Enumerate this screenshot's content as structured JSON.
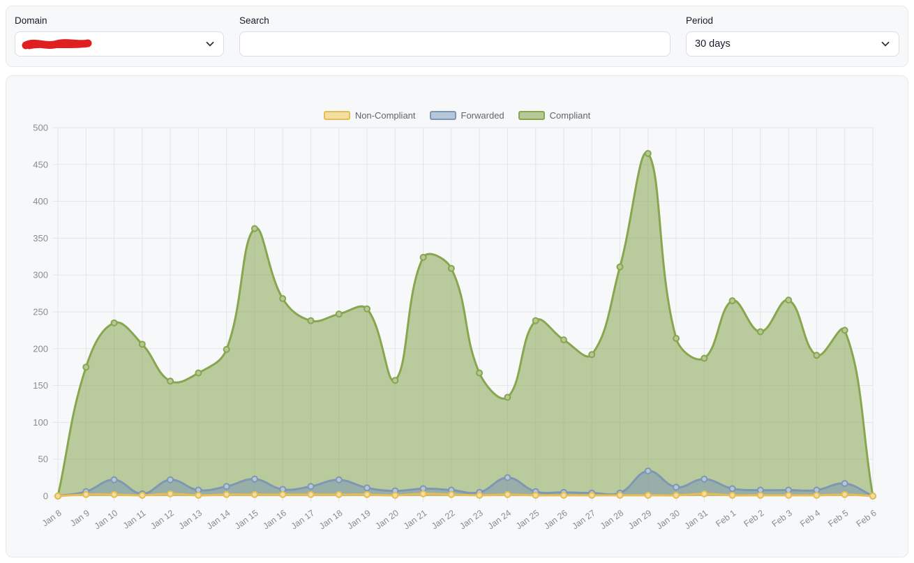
{
  "filters": {
    "domain": {
      "label": "Domain",
      "value": "",
      "redacted": true
    },
    "search": {
      "label": "Search",
      "value": "",
      "placeholder": ""
    },
    "period": {
      "label": "Period",
      "value": "30 days"
    }
  },
  "appearance": {
    "panel_bg": "#f7f8fa",
    "panel_border": "#e7e9ed",
    "grid_color": "#e3e5e8",
    "tick_text_color": "#878b91",
    "legend_text_color": "#5d6470",
    "redaction_color": "#e02020",
    "fill_opacity": 0.55
  },
  "chart_data": {
    "type": "area",
    "title": "",
    "xlabel": "",
    "ylabel": "",
    "ylim": [
      0,
      500
    ],
    "ytick_step": 50,
    "grid": true,
    "legend_position": "top",
    "x": [
      "Jan 8",
      "Jan 9",
      "Jan 10",
      "Jan 11",
      "Jan 12",
      "Jan 13",
      "Jan 14",
      "Jan 15",
      "Jan 16",
      "Jan 17",
      "Jan 18",
      "Jan 19",
      "Jan 20",
      "Jan 21",
      "Jan 22",
      "Jan 23",
      "Jan 24",
      "Jan 25",
      "Jan 26",
      "Jan 27",
      "Jan 28",
      "Jan 29",
      "Jan 30",
      "Jan 31",
      "Feb 1",
      "Feb 2",
      "Feb 3",
      "Feb 4",
      "Feb 5",
      "Feb 6"
    ],
    "series": [
      {
        "name": "Non-Compliant",
        "color": "#e6bd52",
        "marker_fill": "#f2dfa0",
        "values": [
          0,
          2,
          2,
          1,
          3,
          1,
          2,
          2,
          2,
          2,
          2,
          2,
          1,
          3,
          2,
          1,
          2,
          1,
          1,
          1,
          1,
          1,
          1,
          3,
          1,
          1,
          1,
          1,
          2,
          0
        ]
      },
      {
        "name": "Forwarded",
        "color": "#7e97b3",
        "marker_fill": "#b7c7db",
        "values": [
          0,
          6,
          22,
          3,
          22,
          8,
          13,
          23,
          9,
          13,
          22,
          11,
          7,
          10,
          8,
          5,
          25,
          6,
          5,
          4,
          4,
          34,
          12,
          23,
          10,
          8,
          8,
          8,
          17,
          0
        ]
      },
      {
        "name": "Compliant",
        "color": "#87a64e",
        "marker_fill": "#b6c897",
        "values": [
          0,
          175,
          235,
          206,
          156,
          167,
          199,
          363,
          268,
          238,
          247,
          254,
          157,
          324,
          309,
          167,
          134,
          238,
          212,
          192,
          311,
          465,
          214,
          187,
          265,
          223,
          266,
          191,
          225,
          0
        ]
      }
    ]
  }
}
